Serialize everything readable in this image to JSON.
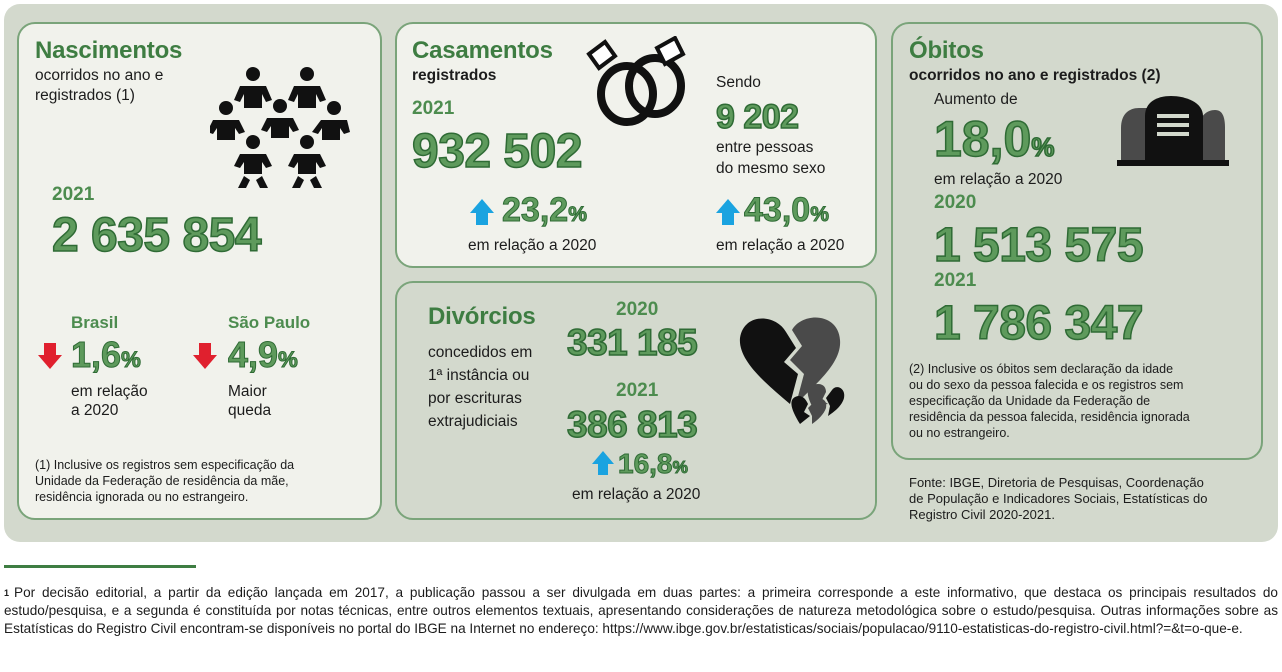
{
  "nascimentos": {
    "title": "Nascimentos",
    "subtitle_line1": "ocorridos no ano e",
    "subtitle_line2": "registrados (1)",
    "year": "2021",
    "value": "2 635 854",
    "brasil": {
      "label": "Brasil",
      "pct": "1,6",
      "unit": "%",
      "desc_line1": "em relação",
      "desc_line2": "a 2020"
    },
    "sao_paulo": {
      "label": "São Paulo",
      "pct": "4,9",
      "unit": "%",
      "desc_line1": "Maior",
      "desc_line2": "queda"
    },
    "note_line1": "(1) Inclusive os registros sem especificação da",
    "note_line2": "Unidade da Federação de residência da mãe,",
    "note_line3": "residência ignorada ou no estrangeiro."
  },
  "casamentos": {
    "title": "Casamentos",
    "subtitle": "registrados",
    "year": "2021",
    "value": "932 502",
    "pct": "23,2",
    "unit": "%",
    "pct_desc": "em relação a 2020",
    "sendo_label": "Sendo",
    "same_sex_value": "9 202",
    "same_sex_line1": "entre pessoas",
    "same_sex_line2": "do mesmo sexo",
    "same_sex_pct": "43,0",
    "same_sex_unit": "%",
    "same_sex_desc": "em relação a 2020"
  },
  "divorcios": {
    "title": "Divórcios",
    "desc_line1": "concedidos em",
    "desc_line2": "1ª instância ou",
    "desc_line3": "por escrituras",
    "desc_line4": "extrajudiciais",
    "year1": "2020",
    "value1": "331 185",
    "year2": "2021",
    "value2": "386 813",
    "pct": "16,8",
    "unit": "%",
    "pct_desc": "em relação a 2020"
  },
  "obitos": {
    "title": "Óbitos",
    "subtitle": "ocorridos no ano e registrados (2)",
    "increase_label": "Aumento de",
    "increase_pct": "18,0",
    "increase_unit": "%",
    "increase_desc": "em relação a 2020",
    "year1": "2020",
    "value1": "1 513 575",
    "year2": "2021",
    "value2": "1 786 347",
    "note_line1": "(2) Inclusive os óbitos sem declaração da idade",
    "note_line2": "ou do sexo da pessoa falecida e os registros sem",
    "note_line3": "especificação da Unidade da Federação de",
    "note_line4": "residência da pessoa falecida, residência ignorada",
    "note_line5": "ou no estrangeiro."
  },
  "source": {
    "line1": "Fonte: IBGE, Diretoria de Pesquisas, Coordenação",
    "line2": "de População e Indicadores Sociais, Estatísticas do",
    "line3": "Registro Civil 2020-2021."
  },
  "footnote": {
    "marker": "1",
    "text": "Por decisão editorial, a partir da edição lançada em 2017, a publicação passou a ser divulgada em duas partes: a primeira corresponde a este informativo, que destaca os principais resultados do estudo/pesquisa, e a segunda é constituída por notas técnicas, entre outros elementos textuais, apresentando considerações de natureza metodológica sobre o estudo/pesquisa. Outras informações sobre as Estatísticas do Registro Civil encontram-se disponíveis no portal do IBGE na Internet no endereço: https://www.ibge.gov.br/estatisticas/sociais/populacao/9110-estatisticas-do-registro-civil.html?=&t=o-que-e."
  },
  "colors": {
    "green_dark": "#3e7d42",
    "green_number": "#5e9a5c",
    "arrow_up": "#1aa3e0",
    "arrow_down": "#e0202e",
    "panel": "#d3d9cd",
    "card": "#f1f2ec"
  },
  "icons": [
    "babies-icon",
    "wedding-rings-icon",
    "broken-hearts-icon",
    "tombstones-icon",
    "arrow-up-icon",
    "arrow-down-icon"
  ]
}
